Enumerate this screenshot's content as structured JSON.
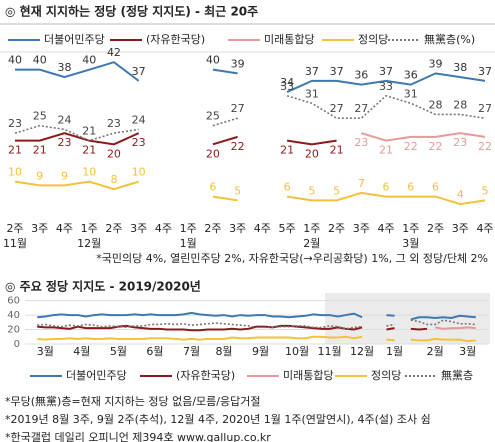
{
  "chart_data": [
    {
      "type": "line",
      "title": "◎  현재 지지하는 정당 (정당 지지도) - 최근 20주",
      "categories": [
        "2주",
        "3주",
        "4주",
        "1주",
        "2주",
        "3주",
        "4주",
        "1주",
        "2주",
        "3주",
        "4주",
        "5주",
        "1주",
        "2주",
        "3주",
        "4주",
        "1주",
        "2주",
        "3주",
        "4주"
      ],
      "category_groups": [
        "11월",
        null,
        null,
        "12월",
        null,
        null,
        null,
        "1월",
        null,
        null,
        null,
        null,
        "2월",
        null,
        null,
        null,
        "3월",
        null,
        null,
        null
      ],
      "ylim": [
        0,
        45
      ],
      "data_labels": true,
      "series": [
        {
          "name": "더불어민주당",
          "color": "#3f78b0",
          "label_side": "above",
          "dotted": false,
          "values": [
            40,
            40,
            38,
            40,
            42,
            37,
            null,
            null,
            40,
            39,
            null,
            34,
            37,
            37,
            36,
            37,
            36,
            39,
            38,
            37
          ]
        },
        {
          "name": "(자유한국당)",
          "color": "#8b1a1a",
          "label_side": "below",
          "dotted": false,
          "values": [
            21,
            21,
            23,
            21,
            20,
            23,
            null,
            null,
            20,
            22,
            null,
            21,
            20,
            21,
            null,
            null,
            null,
            null,
            null,
            null
          ]
        },
        {
          "name": "미래통합당",
          "color": "#e59a9a",
          "label_side": "below",
          "dotted": false,
          "values": [
            null,
            null,
            null,
            null,
            null,
            null,
            null,
            null,
            null,
            null,
            null,
            null,
            null,
            null,
            23,
            21,
            22,
            22,
            23,
            22
          ]
        },
        {
          "name": "정의당",
          "color": "#f2c23a",
          "label_side": "above",
          "dotted": false,
          "values": [
            10,
            9,
            9,
            10,
            8,
            10,
            null,
            null,
            6,
            5,
            null,
            6,
            5,
            5,
            7,
            6,
            6,
            6,
            4,
            5
          ]
        },
        {
          "name": "無黨층(%)",
          "color": "#777777",
          "label_side": "above",
          "dotted": true,
          "values": [
            23,
            25,
            24,
            21,
            23,
            24,
            null,
            null,
            25,
            27,
            null,
            33,
            31,
            27,
            27,
            33,
            31,
            28,
            28,
            27
          ]
        }
      ],
      "note": "*국민의당 4%, 열린민주당 2%, 자유한국당(→우리공화당) 1%, 그 외 정당/단체 2%"
    },
    {
      "type": "line",
      "title": "◎  주요 정당 지지도 - 2019/2020년",
      "x": [
        0,
        1,
        2,
        3,
        4,
        5,
        6,
        7,
        8,
        9,
        10,
        11,
        12,
        13,
        14,
        15,
        16,
        17,
        18,
        19,
        20,
        21,
        22,
        23,
        24,
        25,
        26,
        27,
        28,
        29,
        30,
        31,
        32,
        33,
        34,
        35,
        36,
        37,
        38,
        39,
        40,
        41,
        42,
        43,
        44,
        45,
        46,
        47,
        48,
        49,
        50,
        51,
        52,
        53,
        54
      ],
      "xlim": [
        -1.5,
        55.5
      ],
      "xticks": [
        {
          "value": 1,
          "label": "3월"
        },
        {
          "value": 5.5,
          "label": "4월"
        },
        {
          "value": 10,
          "label": "5월"
        },
        {
          "value": 14.5,
          "label": "6월"
        },
        {
          "value": 19,
          "label": "7월"
        },
        {
          "value": 23,
          "label": "8월"
        },
        {
          "value": 27.5,
          "label": "9월"
        },
        {
          "value": 32,
          "label": "10월"
        },
        {
          "value": 36,
          "label": "11월"
        },
        {
          "value": 40,
          "label": "12월"
        },
        {
          "value": 44,
          "label": "1월"
        },
        {
          "value": 49,
          "label": "2월"
        },
        {
          "value": 53,
          "label": "3월"
        }
      ],
      "ylim": [
        0,
        65
      ],
      "yticks": [
        0,
        20,
        40,
        60
      ],
      "grid": true,
      "series": [
        {
          "name": "더불어민주당",
          "color": "#3f78b0",
          "dotted": false,
          "values": [
            37,
            38,
            40,
            41,
            40,
            40,
            38,
            40,
            41,
            40,
            40,
            40,
            41,
            40,
            41,
            40,
            40,
            40,
            41,
            43,
            41,
            40,
            39,
            40,
            38,
            40,
            39,
            40,
            40,
            38,
            38,
            37,
            38,
            39,
            41,
            40,
            40,
            38,
            40,
            42,
            37,
            null,
            null,
            40,
            39,
            null,
            34,
            37,
            37,
            36,
            37,
            36,
            39,
            38,
            37
          ]
        },
        {
          "name": "(자유한국당)",
          "color": "#8b1a1a",
          "dotted": false,
          "values": [
            24,
            23,
            23,
            22,
            21,
            24,
            22,
            22,
            22,
            22,
            24,
            25,
            23,
            22,
            21,
            21,
            20,
            20,
            20,
            19,
            19,
            20,
            20,
            20,
            21,
            20,
            21,
            24,
            24,
            23,
            25,
            25,
            24,
            23,
            22,
            21,
            21,
            23,
            21,
            20,
            23,
            null,
            null,
            20,
            22,
            null,
            21,
            20,
            21,
            null,
            null,
            null,
            null,
            null,
            null
          ]
        },
        {
          "name": "미래통합당",
          "color": "#e59a9a",
          "dotted": false,
          "values": [
            null,
            null,
            null,
            null,
            null,
            null,
            null,
            null,
            null,
            null,
            null,
            null,
            null,
            null,
            null,
            null,
            null,
            null,
            null,
            null,
            null,
            null,
            null,
            null,
            null,
            null,
            null,
            null,
            null,
            null,
            null,
            null,
            null,
            null,
            null,
            null,
            null,
            null,
            null,
            null,
            null,
            null,
            null,
            null,
            null,
            null,
            null,
            null,
            null,
            23,
            21,
            22,
            22,
            23,
            22
          ]
        },
        {
          "name": "정의당",
          "color": "#f2c23a",
          "dotted": false,
          "values": [
            7,
            6,
            7,
            7,
            8,
            7,
            8,
            7,
            7,
            8,
            7,
            7,
            7,
            7,
            8,
            8,
            8,
            7,
            6,
            7,
            6,
            7,
            7,
            7,
            9,
            8,
            8,
            9,
            9,
            9,
            9,
            9,
            8,
            8,
            10,
            10,
            9,
            9,
            10,
            8,
            10,
            null,
            null,
            6,
            5,
            null,
            6,
            5,
            5,
            7,
            6,
            6,
            6,
            4,
            5
          ]
        },
        {
          "name": "無黨층",
          "color": "#777777",
          "dotted": true,
          "values": [
            26,
            27,
            25,
            24,
            26,
            25,
            27,
            26,
            24,
            25,
            24,
            23,
            25,
            25,
            27,
            27,
            28,
            27,
            28,
            26,
            27,
            28,
            29,
            28,
            27,
            26,
            25,
            23,
            23,
            23,
            24,
            24,
            25,
            25,
            23,
            23,
            25,
            24,
            21,
            23,
            24,
            null,
            null,
            25,
            27,
            null,
            33,
            31,
            27,
            27,
            33,
            31,
            28,
            28,
            27
          ]
        }
      ]
    }
  ],
  "footnotes": [
    "*무당(無黨)층=현재 지지하는 정당 없음/모름/응답거절",
    "*2019년 8월 3주, 9월 2주(추석), 12월 4주, 2020년 1월 1주(연말연시), 4주(설) 조사 쉼",
    "*한국갤럽 데일리 오피니언 제394호 www.gallup.co.kr"
  ]
}
